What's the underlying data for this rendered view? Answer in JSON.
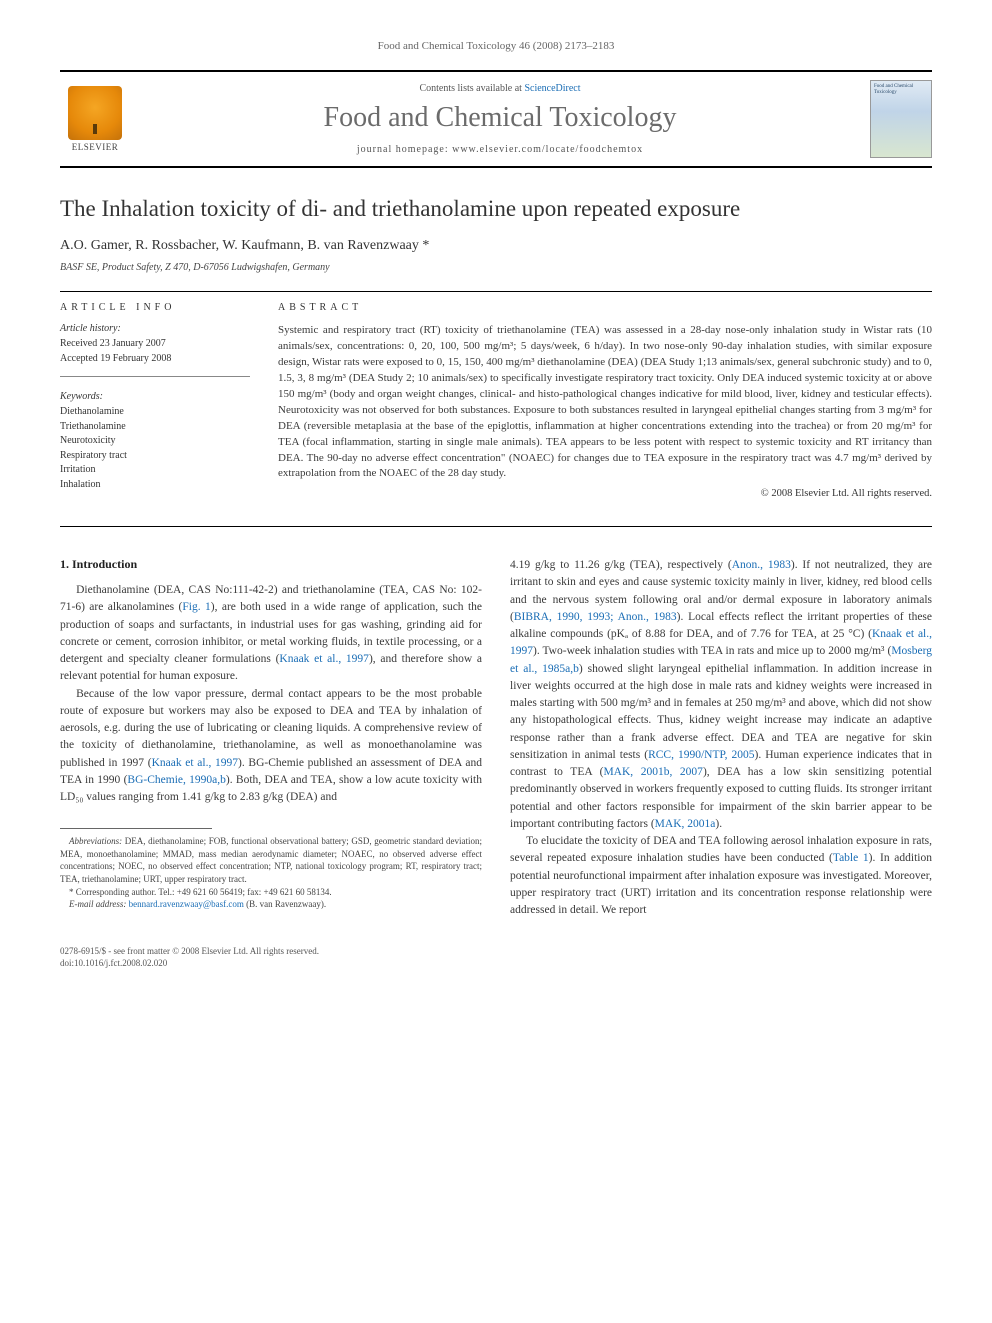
{
  "running_head": "Food and Chemical Toxicology 46 (2008) 2173–2183",
  "banner": {
    "publisher": "ELSEVIER",
    "contents_prefix": "Contents lists available at ",
    "contents_link": "ScienceDirect",
    "journal": "Food and Chemical Toxicology",
    "homepage_prefix": "journal homepage: ",
    "homepage": "www.elsevier.com/locate/foodchemtox",
    "cover_caption": "Food and Chemical Toxicology"
  },
  "title": "The Inhalation toxicity of di- and triethanolamine upon repeated exposure",
  "authors": "A.O. Gamer, R. Rossbacher, W. Kaufmann, B. van Ravenzwaay *",
  "affiliation": "BASF SE, Product Safety, Z 470, D-67056 Ludwigshafen, Germany",
  "info_heading": "ARTICLE INFO",
  "abstract_heading": "ABSTRACT",
  "history_label": "Article history:",
  "history_received": "Received 23 January 2007",
  "history_accepted": "Accepted 19 February 2008",
  "keywords_label": "Keywords:",
  "keywords": [
    "Diethanolamine",
    "Triethanolamine",
    "Neurotoxicity",
    "Respiratory tract",
    "Irritation",
    "Inhalation"
  ],
  "abstract": "Systemic and respiratory tract (RT) toxicity of triethanolamine (TEA) was assessed in a 28-day nose-only inhalation study in Wistar rats (10 animals/sex, concentrations: 0, 20, 100, 500 mg/m³; 5 days/week, 6 h/day). In two nose-only 90-day inhalation studies, with similar exposure design, Wistar rats were exposed to 0, 15, 150, 400 mg/m³ diethanolamine (DEA) (DEA Study 1;13 animals/sex, general subchronic study) and to 0, 1.5, 3, 8 mg/m³ (DEA Study 2; 10 animals/sex) to specifically investigate respiratory tract toxicity. Only DEA induced systemic toxicity at or above 150 mg/m³ (body and organ weight changes, clinical- and histo-pathological changes indicative for mild blood, liver, kidney and testicular effects). Neurotoxicity was not observed for both substances. Exposure to both substances resulted in laryngeal epithelial changes starting from 3 mg/m³ for DEA (reversible metaplasia at the base of the epiglottis, inflammation at higher concentrations extending into the trachea) or from 20 mg/m³ for TEA (focal inflammation, starting in single male animals). TEA appears to be less potent with respect to systemic toxicity and RT irritancy than DEA. The 90-day no adverse effect concentration\" (NOAEC) for changes due to TEA exposure in the respiratory tract was 4.7 mg/m³ derived by extrapolation from the NOAEC of the 28 day study.",
  "copyright": "© 2008 Elsevier Ltd. All rights reserved.",
  "section1_head": "1. Introduction",
  "col1": {
    "p1a": "Diethanolamine (DEA, CAS No:111-42-2) and triethanolamine (TEA, CAS No: 102-71-6) are alkanolamines (",
    "p1_fig": "Fig. 1",
    "p1b": "), are both used in a wide range of application, such the production of soaps and surfactants, in industrial uses for gas washing, grinding aid for concrete or cement, corrosion inhibitor, or metal working fluids, in textile processing, or a detergent and specialty cleaner formulations (",
    "p1_ref1": "Knaak et al., 1997",
    "p1c": "), and therefore show a relevant potential for human exposure.",
    "p2a": "Because of the low vapor pressure, dermal contact appears to be the most probable route of exposure but workers may also be exposed to DEA and TEA by inhalation of aerosols, e.g. during the use of lubricating or cleaning liquids. A comprehensive review of the toxicity of diethanolamine, triethanolamine, as well as monoethanolamine was published in 1997 (",
    "p2_ref1": "Knaak et al., 1997",
    "p2b": "). BG-Chemie published an assessment of DEA and TEA in 1990 (",
    "p2_ref2": "BG-Chemie, 1990a,b",
    "p2c": "). Both, DEA and TEA, show a low acute toxicity with LD₅₀ values ranging from 1.41 g/kg to 2.83 g/kg (DEA) and"
  },
  "col2": {
    "p1a": "4.19 g/kg to 11.26 g/kg (TEA), respectively (",
    "p1_ref1": "Anon., 1983",
    "p1b": "). If not neutralized, they are irritant to skin and eyes and cause systemic toxicity mainly in liver, kidney, red blood cells and the nervous system following oral and/or dermal exposure in laboratory animals (",
    "p1_ref2": "BIBRA, 1990, 1993; Anon., 1983",
    "p1c": "). Local effects reflect the irritant properties of these alkaline compounds (pKₐ of 8.88 for DEA, and of 7.76 for TEA, at 25 °C) (",
    "p1_ref3": "Knaak et al., 1997",
    "p1d": "). Two-week inhalation studies with TEA in rats and mice up to 2000 mg/m³ (",
    "p1_ref4": "Mosberg et al., 1985a,b",
    "p1e": ") showed slight laryngeal epithelial inflammation. In addition increase in liver weights occurred at the high dose in male rats and kidney weights were increased in males starting with 500 mg/m³ and in females at 250 mg/m³ and above, which did not show any histopathological effects. Thus, kidney weight increase may indicate an adaptive response rather than a frank adverse effect. DEA and TEA are negative for skin sensitization in animal tests (",
    "p1_ref5": "RCC, 1990/NTP, 2005",
    "p1f": "). Human experience indicates that in contrast to TEA (",
    "p1_ref6": "MAK, 2001b, 2007",
    "p1g": "), DEA has a low skin sensitizing potential predominantly observed in workers frequently exposed to cutting fluids. Its stronger irritant potential and other factors responsible for impairment of the skin barrier appear to be important contributing factors (",
    "p1_ref7": "MAK, 2001a",
    "p1h": ").",
    "p2a": "To elucidate the toxicity of DEA and TEA following aerosol inhalation exposure in rats, several repeated exposure inhalation studies have been conducted (",
    "p2_ref1": "Table 1",
    "p2b": "). In addition potential neurofunctional impairment after inhalation exposure was investigated. Moreover, upper respiratory tract (URT) irritation and its concentration response relationship were addressed in detail. We report"
  },
  "footnotes": {
    "abbrev_label": "Abbreviations:",
    "abbrev": " DEA, diethanolamine; FOB, functional observational battery; GSD, geometric standard deviation; MEA, monoethanolamine; MMAD, mass median aerodynamic diameter; NOAEC, no observed adverse effect concentrations; NOEC, no observed effect concentration; NTP, national toxicology program; RT, respiratory tract; TEA, triethanolamine; URT, upper respiratory tract.",
    "corr_label": "* Corresponding author.",
    "corr": " Tel.: +49 621 60 56419; fax: +49 621 60 58134.",
    "email_label": "E-mail address:",
    "email": " bennard.ravenzwaay@basf.com",
    "email_tail": " (B. van Ravenzwaay)."
  },
  "footer": {
    "line1": "0278-6915/$ - see front matter © 2008 Elsevier Ltd. All rights reserved.",
    "line2": "doi:10.1016/j.fct.2008.02.020"
  }
}
